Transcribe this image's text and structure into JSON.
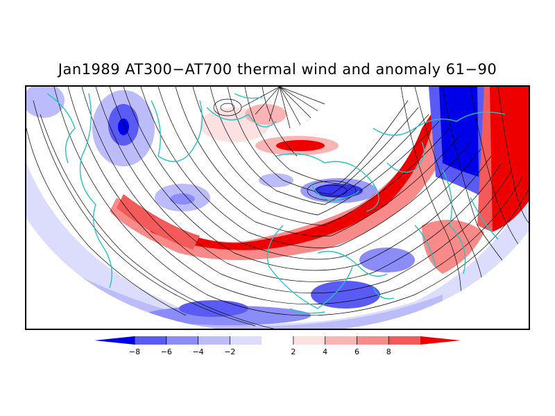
{
  "title": "Jan1989 AT300−AT700 thermal wind and anomaly 61−90",
  "colorbar": {
    "labels": [
      "−8",
      "−6",
      "−4",
      "−2",
      "2",
      "4",
      "6",
      "8"
    ],
    "colors": [
      "#0000e8",
      "#5a5af5",
      "#8c8cf8",
      "#bcbcfa",
      "#dcdcfc",
      "#ffffff",
      "#fde0e0",
      "#fbb4b4",
      "#f88a8a",
      "#f45a5a",
      "#ee0000"
    ]
  },
  "map": {
    "coastline_color": "#22c4c4",
    "streamline_color": "#000000",
    "negative_color": "#0000e8",
    "positive_color": "#ee0000"
  }
}
